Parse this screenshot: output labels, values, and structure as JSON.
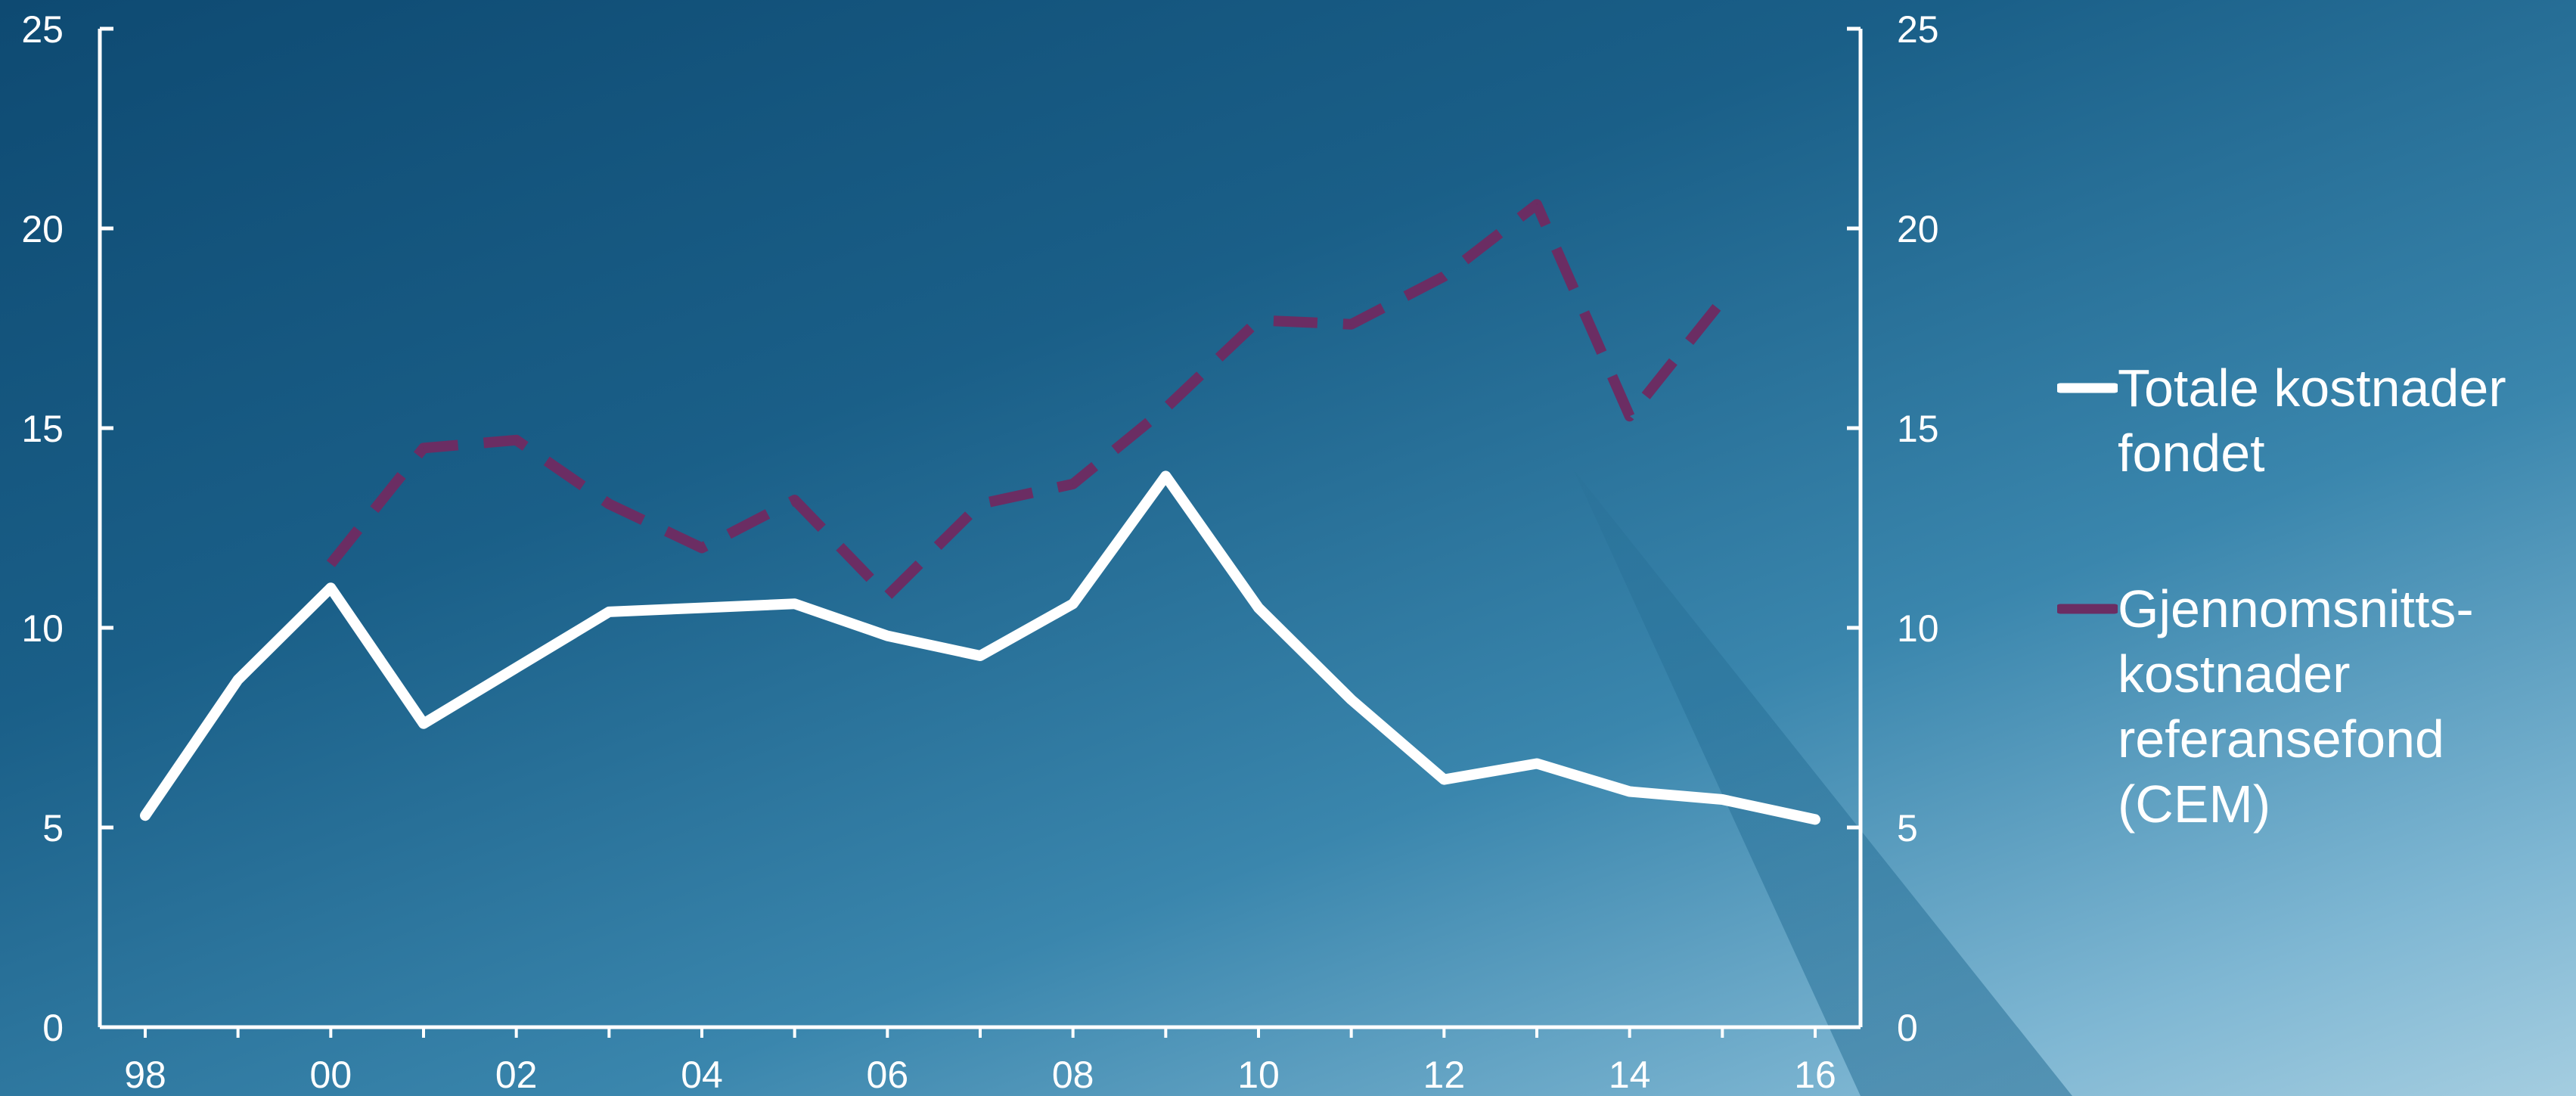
{
  "chart_data": {
    "type": "line",
    "x": [
      "98",
      "99",
      "00",
      "01",
      "02",
      "03",
      "04",
      "05",
      "06",
      "07",
      "08",
      "09",
      "10",
      "11",
      "12",
      "13",
      "14",
      "15",
      "16"
    ],
    "xtick_labels": [
      "98",
      "00",
      "02",
      "04",
      "06",
      "08",
      "10",
      "12",
      "14",
      "16"
    ],
    "ylim": [
      0,
      25
    ],
    "yticks": [
      0,
      5,
      10,
      15,
      20,
      25
    ],
    "grid": false,
    "legend_position": "right",
    "series": [
      {
        "name": "Totale kostnader fondet",
        "style": "solid",
        "color": "#ffffff",
        "values": [
          5.3,
          8.7,
          11.0,
          7.6,
          9.0,
          10.4,
          10.5,
          10.6,
          9.8,
          9.3,
          10.6,
          13.8,
          10.5,
          8.2,
          6.2,
          6.6,
          5.9,
          5.7,
          5.2
        ]
      },
      {
        "name": "Gjennomsnitts-kostnader referansefond (CEM)",
        "style": "dashed",
        "color": "#6b2d63",
        "values": [
          null,
          null,
          11.6,
          14.5,
          14.7,
          13.1,
          12.0,
          13.2,
          10.8,
          13.1,
          13.6,
          15.5,
          17.7,
          17.6,
          18.8,
          20.6,
          15.3,
          18.2,
          null
        ]
      }
    ]
  },
  "legend": {
    "items": [
      {
        "lines": [
          "Totale kostnader",
          "fondet"
        ],
        "color": "#ffffff",
        "style": "solid"
      },
      {
        "lines": [
          "Gjennomsnitts-",
          "kostnader",
          "referansefond",
          "(CEM)"
        ],
        "color": "#6b2d63",
        "style": "dashed"
      }
    ]
  }
}
